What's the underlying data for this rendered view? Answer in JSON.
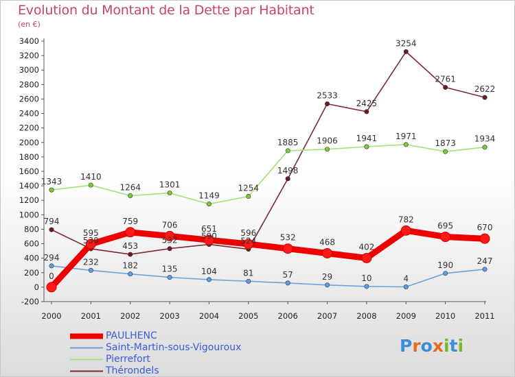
{
  "title": "Evolution du Montant de la Dette par Habitant",
  "subtitle": "(en €)",
  "logo": {
    "text": "Proxiti",
    "letters": [
      {
        "ch": "P",
        "color": "#3b8ed9"
      },
      {
        "ch": "r",
        "color": "#e36c1f"
      },
      {
        "ch": "o",
        "color": "#3b8ed9"
      },
      {
        "ch": "x",
        "color": "#e36c1f"
      },
      {
        "ch": "i",
        "color": "#79b82d"
      },
      {
        "ch": "t",
        "color": "#3b8ed9"
      },
      {
        "ch": "i",
        "color": "#79b82d"
      }
    ]
  },
  "chart_data": {
    "type": "line",
    "x": [
      "2000",
      "2001",
      "2002",
      "2003",
      "2004",
      "2005",
      "2006",
      "2007",
      "2008",
      "2009",
      "2010",
      "2011"
    ],
    "ylim": [
      -200,
      3400
    ],
    "yticks": [
      -200,
      0,
      200,
      400,
      600,
      800,
      1000,
      1200,
      1400,
      1600,
      1800,
      2000,
      2200,
      2400,
      2600,
      2800,
      3000,
      3200,
      3400
    ],
    "grid": false,
    "legend": "bottom-left",
    "series": [
      {
        "name": "PAULHENC",
        "color": "#ee0000",
        "marker_color": "#ff1a1a",
        "thick": true,
        "values": [
          0,
          595,
          759,
          706,
          651,
          596,
          532,
          468,
          402,
          782,
          695,
          670
        ]
      },
      {
        "name": "Saint-Martin-sous-Vigouroux",
        "color": "#6ea1d8",
        "marker_color": "#5b9ee5",
        "thick": false,
        "values": [
          294,
          232,
          182,
          135,
          104,
          81,
          57,
          29,
          10,
          4,
          190,
          247
        ]
      },
      {
        "name": "Pierrefort",
        "color": "#a4e07a",
        "marker_color": "#7ccc3a",
        "thick": false,
        "values": [
          1343,
          1410,
          1264,
          1301,
          1149,
          1254,
          1885,
          1906,
          1941,
          1971,
          1873,
          1934
        ]
      },
      {
        "name": "Thérondels",
        "color": "#7a2a32",
        "marker_color": "#6b1a22",
        "thick": false,
        "values": [
          794,
          530,
          453,
          532,
          590,
          524,
          1498,
          2533,
          2425,
          3254,
          2761,
          2622
        ]
      }
    ]
  }
}
